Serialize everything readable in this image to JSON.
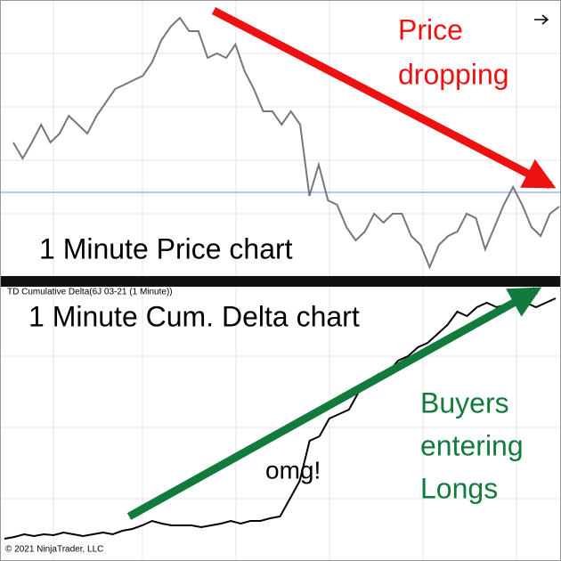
{
  "chart_data": [
    {
      "type": "line",
      "color": "#777777",
      "ylim": [
        0,
        310
      ],
      "reference_line": 94,
      "reference_color": "#6f8fe0",
      "annotations": [
        "Price",
        "dropping",
        "1 Minute Price chart"
      ],
      "values": [
        150,
        132,
        150,
        170,
        150,
        160,
        180,
        170,
        160,
        180,
        195,
        210,
        215,
        220,
        225,
        240,
        265,
        280,
        290,
        275,
        275,
        245,
        250,
        245,
        260,
        230,
        210,
        185,
        185,
        170,
        185,
        170,
        90,
        125,
        85,
        80,
        55,
        40,
        50,
        70,
        60,
        70,
        70,
        45,
        35,
        10,
        35,
        45,
        50,
        70,
        65,
        30,
        55,
        80,
        100,
        80,
        55,
        45,
        70,
        78
      ]
    },
    {
      "type": "line",
      "color": "#000000",
      "ylim": [
        0,
        308
      ],
      "title": "TD Cumulative Delta(6J 03-21 (1 Minute))",
      "annotations": [
        "1 Minute Cum. Delta chart",
        "omg!",
        "Buyers",
        "entering",
        "Longs"
      ],
      "values": [
        25,
        27,
        30,
        28,
        30,
        29,
        32,
        30,
        28,
        30,
        32,
        30,
        34,
        36,
        40,
        45,
        42,
        40,
        40,
        40,
        38,
        40,
        42,
        45,
        42,
        45,
        45,
        48,
        50,
        70,
        90,
        135,
        140,
        160,
        165,
        170,
        190,
        200,
        210,
        212,
        225,
        230,
        240,
        245,
        255,
        265,
        280,
        275,
        285,
        290,
        285,
        288,
        292,
        290,
        285,
        290,
        295
      ]
    }
  ],
  "footer": "© 2021 NinjaTrader, LLC"
}
